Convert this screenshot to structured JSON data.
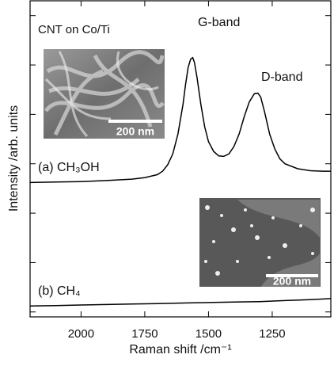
{
  "chart_data": {
    "type": "line",
    "x_label": "Raman shift /cm⁻¹",
    "y_label": "Intensity /arb. units",
    "xlim": [
      2200,
      1020
    ],
    "xticks": [
      2000,
      1750,
      1500,
      1250
    ],
    "ylim": [
      -0.1,
      6.3
    ],
    "yticks": [
      0,
      1,
      2,
      3,
      4,
      5,
      6
    ],
    "series": [
      {
        "name": "(a) CH₃OH",
        "color": "#000000",
        "x": [
          2200,
          2100,
          2000,
          1900,
          1800,
          1750,
          1700,
          1680,
          1660,
          1640,
          1620,
          1600,
          1590,
          1580,
          1570,
          1562,
          1555,
          1545,
          1530,
          1515,
          1500,
          1480,
          1460,
          1440,
          1420,
          1400,
          1380,
          1360,
          1340,
          1320,
          1306,
          1295,
          1280,
          1260,
          1240,
          1220,
          1200,
          1150,
          1100,
          1050,
          1020
        ],
        "values": [
          2.62,
          2.63,
          2.64,
          2.66,
          2.69,
          2.72,
          2.78,
          2.85,
          2.98,
          3.2,
          3.6,
          4.2,
          4.6,
          4.95,
          5.12,
          5.15,
          5.05,
          4.75,
          4.2,
          3.75,
          3.45,
          3.25,
          3.16,
          3.15,
          3.2,
          3.35,
          3.6,
          3.95,
          4.25,
          4.42,
          4.43,
          4.35,
          4.05,
          3.6,
          3.3,
          3.1,
          3.0,
          2.9,
          2.86,
          2.85,
          2.85
        ]
      },
      {
        "name": "(b) CH₄",
        "color": "#000000",
        "x": [
          2200,
          2100,
          2000,
          1900,
          1800,
          1700,
          1600,
          1500,
          1400,
          1300,
          1200,
          1100,
          1020
        ],
        "values": [
          0.12,
          0.13,
          0.14,
          0.15,
          0.16,
          0.17,
          0.18,
          0.19,
          0.2,
          0.21,
          0.23,
          0.25,
          0.27
        ]
      }
    ],
    "annotations": [
      "CNT on Co/Ti",
      "G-band",
      "D-band",
      "200 nm",
      "200 nm"
    ]
  }
}
